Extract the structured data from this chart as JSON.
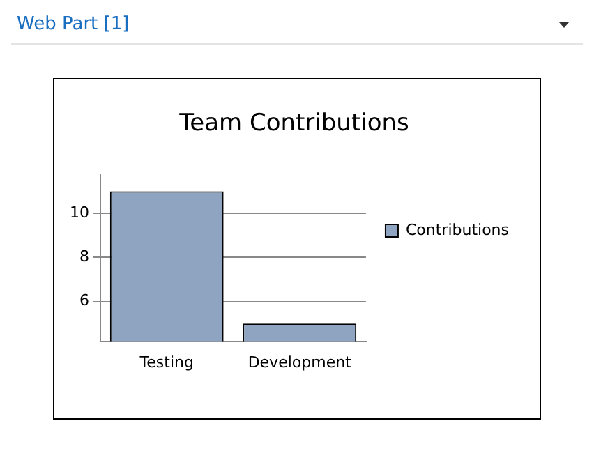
{
  "chart_data": {
    "type": "bar",
    "title": "Team Contributions",
    "annotations": [
      "Web Part [1]"
    ],
    "categories": [
      "Testing",
      "Development"
    ],
    "series": [
      {
        "name": "Contributions",
        "color": "#8ea4c0",
        "values": [
          11,
          5
        ]
      }
    ],
    "ylim": [
      4.2,
      11.75
    ],
    "yticks": [
      6,
      8,
      10
    ],
    "grid": "y",
    "legend": "right"
  }
}
